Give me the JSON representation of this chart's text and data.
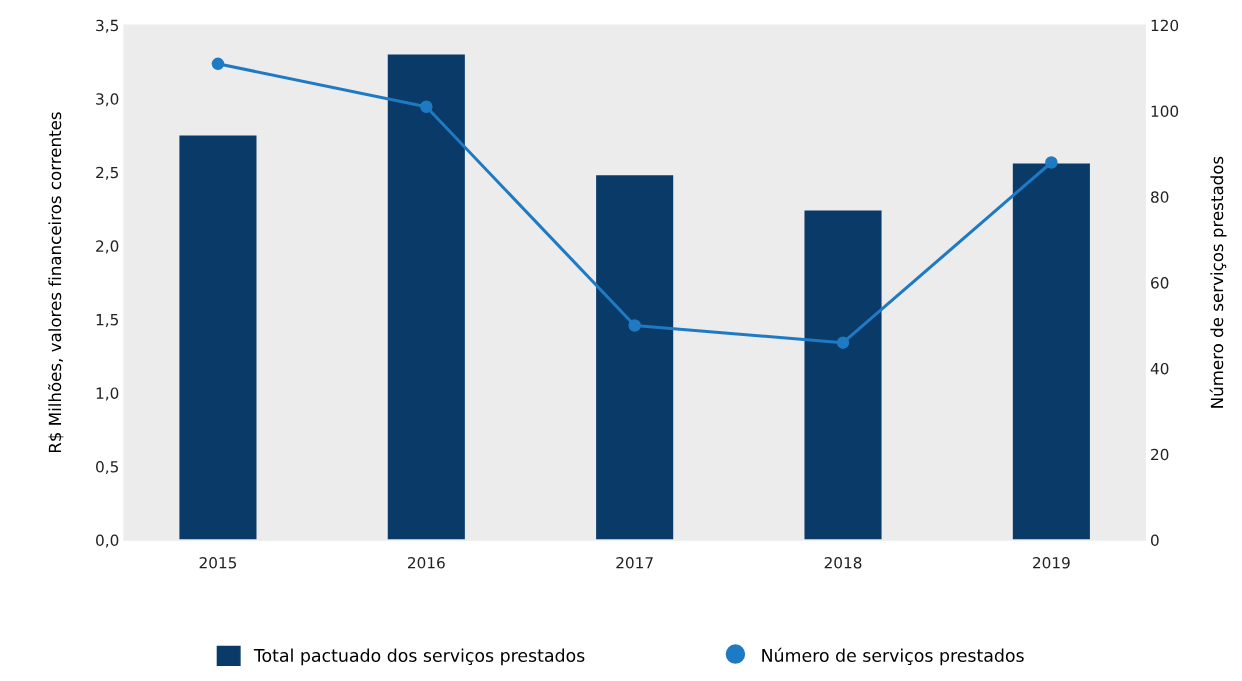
{
  "chart_data": {
    "type": "bar",
    "categories": [
      "2015",
      "2016",
      "2017",
      "2018",
      "2019"
    ],
    "ylabel": "R$ Milhões, valores financeiros correntes",
    "y2label": "Número de serviços prestados",
    "ylim": [
      0,
      3.5
    ],
    "yticks": [
      {
        "value": 0,
        "label": "0,0"
      },
      {
        "value": 0.5,
        "label": "0,5"
      },
      {
        "value": 1,
        "label": "1,0"
      },
      {
        "value": 1.5,
        "label": "1,5"
      },
      {
        "value": 2,
        "label": "2,0"
      },
      {
        "value": 2.5,
        "label": "2,5"
      },
      {
        "value": 3,
        "label": "3,0"
      },
      {
        "value": 3.5,
        "label": "3,5"
      }
    ],
    "y2lim": [
      0,
      120
    ],
    "y2ticks": [
      0,
      20,
      40,
      60,
      80,
      100,
      120
    ],
    "series": [
      {
        "name": "Total pactuado dos serviços prestados",
        "color": "#0a3a68",
        "values": [
          2.75,
          3.3,
          2.48,
          2.24,
          2.56
        ]
      },
      {
        "name": "Número de serviços prestados",
        "type": "line",
        "axis": "y2",
        "color": "#1f7ac4",
        "marker": "circle",
        "values": [
          111,
          101,
          50,
          46,
          88
        ]
      }
    ],
    "grid": false,
    "legend": "bottom"
  }
}
